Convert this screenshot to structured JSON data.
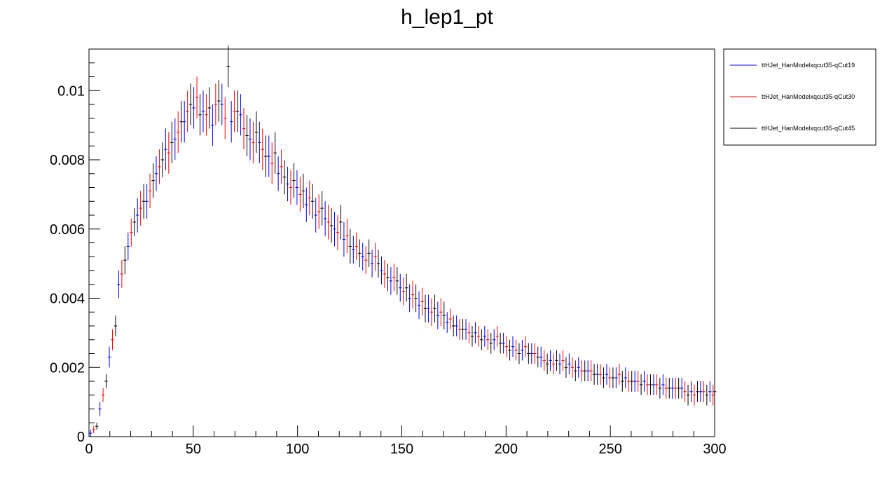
{
  "chart_data": {
    "type": "scatter",
    "title": "h_lep1_pt",
    "xlabel": "",
    "ylabel": "",
    "xlim": [
      0,
      300
    ],
    "ylim": [
      0,
      0.0112
    ],
    "x_ticks": [
      0,
      50,
      100,
      150,
      200,
      250,
      300
    ],
    "x_tick_labels": [
      "0",
      "50",
      "100",
      "150",
      "200",
      "250",
      "300"
    ],
    "y_ticks": [
      0,
      0.002,
      0.004,
      0.006,
      0.008,
      0.01
    ],
    "y_tick_labels": [
      "0",
      "0.002",
      "0.004",
      "0.006",
      "0.008",
      "0.01"
    ],
    "legend_position": "top-right, outside plot",
    "grid": false,
    "bin_width": 1.5,
    "series": [
      {
        "name": "ttHJet_HanModelxqcut35-qCut19",
        "color": "#0000ff",
        "x": [
          0.75,
          5.25,
          9.75,
          14.25,
          18.75,
          23.25,
          27.75,
          32.25,
          36.75,
          41.25,
          45.75,
          50.25,
          54.75,
          59.25,
          63.75,
          68.25,
          72.75,
          77.25,
          81.75,
          86.25,
          90.75,
          95.25,
          99.75,
          104.25,
          108.75,
          113.25,
          117.75,
          122.25,
          126.75,
          131.25,
          135.75,
          140.25,
          144.75,
          149.25,
          153.75,
          158.25,
          162.75,
          167.25,
          171.75,
          176.25,
          180.75,
          185.25,
          189.75,
          194.25,
          198.75,
          203.25,
          207.75,
          212.25,
          216.75,
          221.25,
          225.75,
          230.25,
          234.75,
          239.25,
          243.75,
          248.25,
          252.75,
          257.25,
          261.75,
          266.25,
          270.75,
          275.25,
          279.75,
          284.25,
          288.75,
          293.25,
          297.75
        ],
        "y": [
          0.0001,
          0.0008,
          0.0023,
          0.0044,
          0.0055,
          0.0064,
          0.0068,
          0.0076,
          0.0083,
          0.0086,
          0.0091,
          0.0095,
          0.0094,
          0.009,
          0.0096,
          0.0091,
          0.0093,
          0.0086,
          0.0085,
          0.0081,
          0.0076,
          0.0073,
          0.0072,
          0.0067,
          0.0064,
          0.0063,
          0.006,
          0.0057,
          0.0054,
          0.0052,
          0.005,
          0.0048,
          0.0045,
          0.0043,
          0.004,
          0.0038,
          0.0037,
          0.0035,
          0.0033,
          0.0032,
          0.0031,
          0.003,
          0.0029,
          0.0028,
          0.0027,
          0.0026,
          0.0025,
          0.0024,
          0.0023,
          0.0022,
          0.0021,
          0.0021,
          0.002,
          0.0019,
          0.0018,
          0.0018,
          0.0017,
          0.0017,
          0.0016,
          0.0016,
          0.0015,
          0.0015,
          0.0014,
          0.0014,
          0.0013,
          0.0013,
          0.0013
        ],
        "yerr": [
          0.0001,
          0.0002,
          0.0003,
          0.0004,
          0.0004,
          0.0005,
          0.0005,
          0.0005,
          0.0006,
          0.0006,
          0.0006,
          0.0006,
          0.0006,
          0.0006,
          0.0006,
          0.0006,
          0.0006,
          0.0006,
          0.0006,
          0.0006,
          0.0005,
          0.0005,
          0.0005,
          0.0005,
          0.0005,
          0.0005,
          0.0005,
          0.0005,
          0.0004,
          0.0004,
          0.0004,
          0.0004,
          0.0004,
          0.0004,
          0.0004,
          0.0004,
          0.0004,
          0.0004,
          0.0003,
          0.0003,
          0.0003,
          0.0003,
          0.0003,
          0.0003,
          0.0003,
          0.0003,
          0.0003,
          0.0003,
          0.0003,
          0.0003,
          0.0003,
          0.0003,
          0.0003,
          0.0003,
          0.0003,
          0.0003,
          0.0003,
          0.0003,
          0.0003,
          0.0003,
          0.0003,
          0.0003,
          0.0003,
          0.0003,
          0.0003,
          0.0003,
          0.0003
        ]
      },
      {
        "name": "ttHJet_HanModelxqcut35-qCut30",
        "color": "#ff0000",
        "x": [
          2.25,
          6.75,
          11.25,
          15.75,
          20.25,
          24.75,
          29.25,
          33.75,
          38.25,
          42.75,
          47.25,
          51.75,
          56.25,
          60.75,
          65.25,
          69.75,
          74.25,
          78.75,
          83.25,
          87.75,
          92.25,
          96.75,
          101.25,
          105.75,
          110.25,
          114.75,
          119.25,
          123.75,
          128.25,
          132.75,
          137.25,
          141.75,
          146.25,
          150.75,
          155.25,
          159.75,
          164.25,
          168.75,
          173.25,
          177.75,
          182.25,
          186.75,
          191.25,
          195.75,
          200.25,
          204.75,
          209.25,
          213.75,
          218.25,
          222.75,
          227.25,
          231.75,
          236.25,
          240.75,
          245.25,
          249.75,
          254.25,
          258.75,
          263.25,
          267.75,
          272.25,
          276.75,
          281.25,
          285.75,
          290.25,
          294.75,
          299.25
        ],
        "y": [
          0.0002,
          0.0012,
          0.0028,
          0.0047,
          0.0059,
          0.0066,
          0.0071,
          0.0078,
          0.0082,
          0.0088,
          0.0094,
          0.0098,
          0.0093,
          0.0096,
          0.0092,
          0.0094,
          0.0089,
          0.0085,
          0.0083,
          0.0079,
          0.0078,
          0.0072,
          0.007,
          0.0069,
          0.0065,
          0.0062,
          0.0059,
          0.0058,
          0.0055,
          0.0051,
          0.0052,
          0.0047,
          0.0046,
          0.0042,
          0.0041,
          0.0039,
          0.0036,
          0.0036,
          0.0034,
          0.0031,
          0.003,
          0.0029,
          0.0028,
          0.0029,
          0.0026,
          0.0025,
          0.0026,
          0.0024,
          0.0022,
          0.0021,
          0.0022,
          0.002,
          0.0019,
          0.0019,
          0.0018,
          0.0017,
          0.0018,
          0.0016,
          0.0016,
          0.0015,
          0.0015,
          0.0014,
          0.0014,
          0.0013,
          0.0012,
          0.0013,
          0.0012
        ],
        "yerr": [
          0.0001,
          0.0002,
          0.0003,
          0.0004,
          0.0004,
          0.0005,
          0.0005,
          0.0005,
          0.0006,
          0.0006,
          0.0006,
          0.0006,
          0.0006,
          0.0006,
          0.0006,
          0.0006,
          0.0006,
          0.0006,
          0.0006,
          0.0006,
          0.0005,
          0.0005,
          0.0005,
          0.0005,
          0.0005,
          0.0005,
          0.0005,
          0.0005,
          0.0004,
          0.0004,
          0.0004,
          0.0004,
          0.0004,
          0.0004,
          0.0004,
          0.0004,
          0.0004,
          0.0004,
          0.0003,
          0.0003,
          0.0003,
          0.0003,
          0.0003,
          0.0003,
          0.0003,
          0.0003,
          0.0003,
          0.0003,
          0.0003,
          0.0003,
          0.0003,
          0.0003,
          0.0003,
          0.0003,
          0.0003,
          0.0003,
          0.0003,
          0.0003,
          0.0003,
          0.0003,
          0.0003,
          0.0003,
          0.0003,
          0.0003,
          0.0003,
          0.0003,
          0.0003
        ]
      },
      {
        "name": "ttHJet_HanModelxqcut35-qCut45",
        "color": "#000000",
        "x": [
          3.75,
          8.25,
          12.75,
          17.25,
          21.75,
          26.25,
          30.75,
          35.25,
          39.75,
          44.25,
          48.75,
          53.25,
          57.75,
          62.25,
          66.75,
          71.25,
          75.75,
          80.25,
          84.75,
          89.25,
          93.75,
          98.25,
          102.75,
          107.25,
          111.75,
          116.25,
          120.75,
          125.25,
          129.75,
          134.25,
          138.75,
          143.25,
          147.75,
          152.25,
          156.75,
          161.25,
          165.75,
          170.25,
          174.75,
          179.25,
          183.75,
          188.25,
          192.75,
          197.25,
          201.75,
          206.25,
          210.75,
          215.25,
          219.75,
          224.25,
          228.75,
          233.25,
          237.75,
          242.25,
          246.75,
          251.25,
          255.75,
          260.25,
          264.75,
          269.25,
          273.75,
          278.25,
          282.75,
          287.25,
          291.75,
          296.25,
          300.0
        ],
        "y": [
          0.0003,
          0.0016,
          0.0032,
          0.0051,
          0.0062,
          0.0068,
          0.0074,
          0.008,
          0.0085,
          0.0091,
          0.0096,
          0.0093,
          0.0095,
          0.0097,
          0.0107,
          0.0094,
          0.0087,
          0.0088,
          0.0081,
          0.0082,
          0.0075,
          0.0074,
          0.0071,
          0.0068,
          0.0066,
          0.0061,
          0.0062,
          0.0055,
          0.0053,
          0.0053,
          0.005,
          0.0046,
          0.0045,
          0.0043,
          0.004,
          0.0037,
          0.0037,
          0.0035,
          0.0032,
          0.0031,
          0.0029,
          0.0028,
          0.0027,
          0.0027,
          0.0025,
          0.0024,
          0.0024,
          0.0023,
          0.0021,
          0.0022,
          0.002,
          0.0019,
          0.0019,
          0.0018,
          0.0017,
          0.0017,
          0.0016,
          0.0016,
          0.0015,
          0.0015,
          0.0014,
          0.0014,
          0.0014,
          0.0012,
          0.0013,
          0.0012,
          0.0013
        ],
        "yerr": [
          0.0001,
          0.0002,
          0.0003,
          0.0004,
          0.0004,
          0.0005,
          0.0005,
          0.0005,
          0.0006,
          0.0006,
          0.0006,
          0.0006,
          0.0006,
          0.0006,
          0.0006,
          0.0006,
          0.0006,
          0.0006,
          0.0006,
          0.0006,
          0.0005,
          0.0005,
          0.0005,
          0.0005,
          0.0005,
          0.0005,
          0.0005,
          0.0005,
          0.0004,
          0.0004,
          0.0004,
          0.0004,
          0.0004,
          0.0004,
          0.0004,
          0.0004,
          0.0004,
          0.0004,
          0.0003,
          0.0003,
          0.0003,
          0.0003,
          0.0003,
          0.0003,
          0.0003,
          0.0003,
          0.0003,
          0.0003,
          0.0003,
          0.0003,
          0.0003,
          0.0003,
          0.0003,
          0.0003,
          0.0003,
          0.0003,
          0.0003,
          0.0003,
          0.0003,
          0.0003,
          0.0003,
          0.0003,
          0.0003,
          0.0003,
          0.0003,
          0.0003,
          0.0003
        ]
      }
    ]
  }
}
